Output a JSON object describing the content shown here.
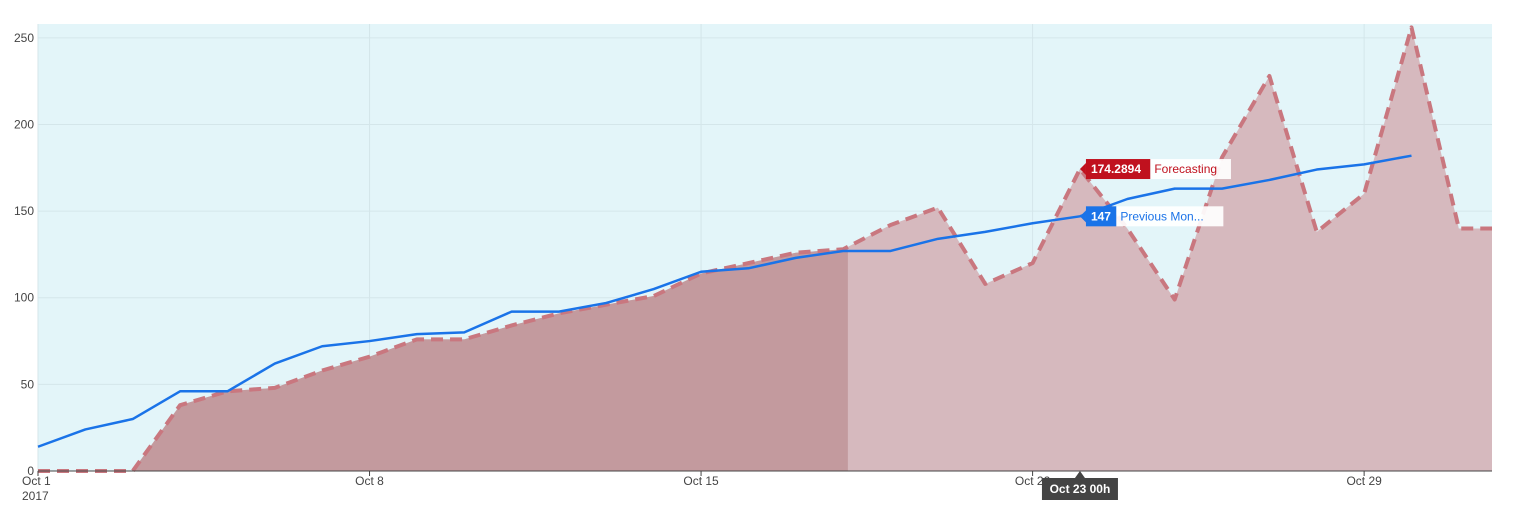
{
  "chart_data": {
    "type": "area",
    "title": "",
    "xlabel": "",
    "ylabel": "",
    "x_tick_labels": [
      "Oct 1",
      "Oct 8",
      "Oct 15",
      "Oct 22",
      "Oct 29"
    ],
    "x_tick_days": [
      1,
      8,
      15,
      22,
      29
    ],
    "x_year_label": "2017",
    "x_range_days": [
      1,
      31.7
    ],
    "y_tick_labels": [
      "0",
      "50",
      "100",
      "150",
      "200",
      "250"
    ],
    "y_ticks": [
      0,
      50,
      100,
      150,
      200,
      250
    ],
    "ylim": [
      0,
      258
    ],
    "grid": true,
    "plot_background": "#e3f5f9",
    "series": [
      {
        "name": "Forecasting",
        "style": "dashed-area",
        "color": "#c9777f",
        "fill": "#d6b9be",
        "fill_history": "#c39a9e",
        "history_until_day": 18.1,
        "x": [
          1,
          2,
          3,
          4,
          5,
          6,
          7,
          8,
          9,
          10,
          11,
          12,
          13,
          14,
          15,
          16,
          17,
          18,
          19,
          20,
          21,
          22,
          23,
          24,
          25,
          26,
          27,
          28,
          29,
          30,
          31,
          31.7
        ],
        "values": [
          0,
          0,
          0,
          38,
          46,
          48,
          58,
          66,
          76,
          76,
          84,
          91,
          96,
          101,
          114,
          120,
          126,
          128,
          142,
          152,
          108,
          120,
          174.2894,
          140,
          99,
          181,
          228,
          138,
          160,
          256,
          140,
          140
        ]
      },
      {
        "name": "Previous Mon...",
        "style": "line",
        "color": "#1a73e8",
        "x": [
          1,
          2,
          3,
          4,
          5,
          6,
          7,
          8,
          9,
          10,
          11,
          12,
          13,
          14,
          15,
          16,
          17,
          18,
          19,
          20,
          21,
          22,
          23,
          24,
          25,
          26,
          27,
          28,
          29,
          30
        ],
        "values": [
          14,
          24,
          30,
          46,
          46,
          62,
          72,
          75,
          79,
          80,
          92,
          92,
          97,
          105,
          115,
          117,
          123,
          127,
          127,
          134,
          138,
          143,
          147,
          157,
          163,
          163,
          168,
          174,
          177,
          182
        ]
      }
    ],
    "hover": {
      "x_label": "Oct 23 00h",
      "items": [
        {
          "value": "174.2894",
          "name": "Forecasting",
          "box_color": "#c0111e",
          "text_color": "#c0111e"
        },
        {
          "value": "147",
          "name": "Previous Mon...",
          "box_color": "#1a73e8",
          "text_color": "#1a73e8"
        }
      ]
    }
  }
}
